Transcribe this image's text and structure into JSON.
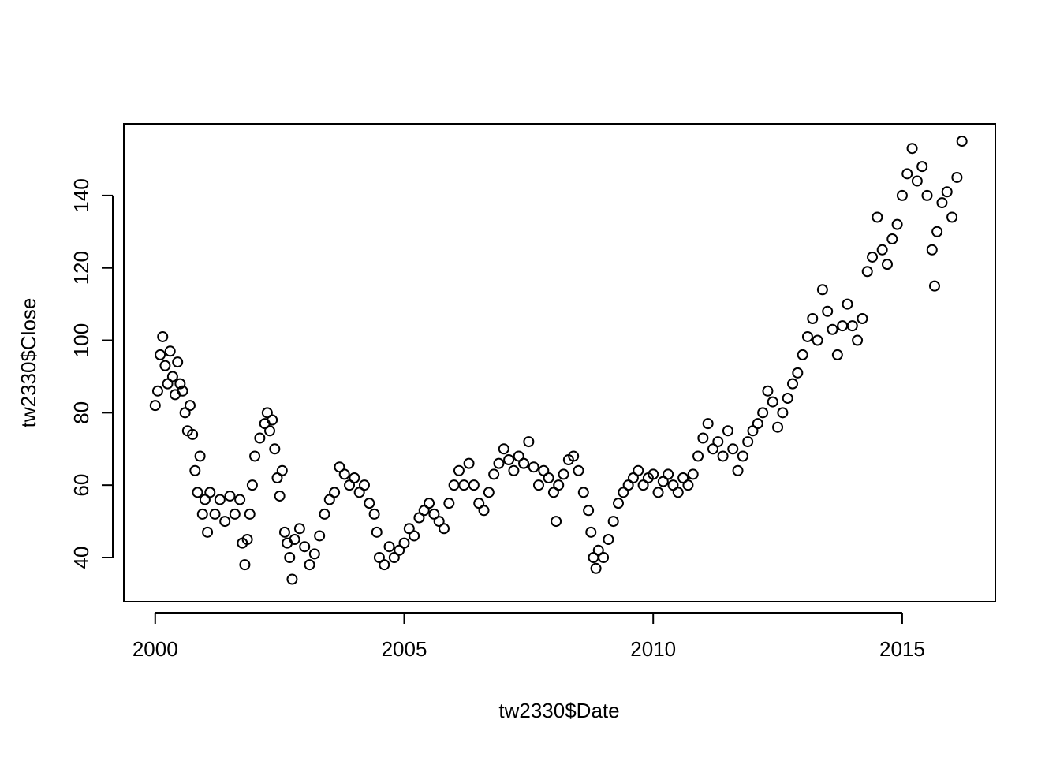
{
  "chart_data": {
    "type": "scatter",
    "xlabel": "tw2330$Date",
    "ylabel": "tw2330$Close",
    "xlim": [
      1999.37,
      2016.87
    ],
    "ylim": [
      27.8,
      159.8
    ],
    "xticks": [
      2000,
      2005,
      2010,
      2015
    ],
    "yticks": [
      40,
      60,
      80,
      100,
      120,
      140
    ],
    "color": "#000000",
    "x": [
      2000.0,
      2000.05,
      2000.1,
      2000.15,
      2000.2,
      2000.25,
      2000.3,
      2000.35,
      2000.4,
      2000.45,
      2000.5,
      2000.55,
      2000.6,
      2000.65,
      2000.7,
      2000.75,
      2000.8,
      2000.85,
      2000.9,
      2000.95,
      2001.0,
      2001.05,
      2001.1,
      2001.2,
      2001.3,
      2001.4,
      2001.5,
      2001.6,
      2001.7,
      2001.75,
      2001.8,
      2001.85,
      2001.9,
      2001.95,
      2002.0,
      2002.1,
      2002.2,
      2002.25,
      2002.3,
      2002.35,
      2002.4,
      2002.45,
      2002.5,
      2002.55,
      2002.6,
      2002.65,
      2002.7,
      2002.75,
      2002.8,
      2002.9,
      2003.0,
      2003.1,
      2003.2,
      2003.3,
      2003.4,
      2003.5,
      2003.6,
      2003.7,
      2003.8,
      2003.9,
      2004.0,
      2004.1,
      2004.2,
      2004.3,
      2004.4,
      2004.45,
      2004.5,
      2004.6,
      2004.7,
      2004.8,
      2004.9,
      2005.0,
      2005.1,
      2005.2,
      2005.3,
      2005.4,
      2005.5,
      2005.6,
      2005.7,
      2005.8,
      2005.9,
      2006.0,
      2006.1,
      2006.2,
      2006.3,
      2006.4,
      2006.5,
      2006.6,
      2006.7,
      2006.8,
      2006.9,
      2007.0,
      2007.1,
      2007.2,
      2007.3,
      2007.4,
      2007.5,
      2007.6,
      2007.7,
      2007.8,
      2007.9,
      2008.0,
      2008.05,
      2008.1,
      2008.2,
      2008.3,
      2008.4,
      2008.5,
      2008.6,
      2008.7,
      2008.75,
      2008.8,
      2008.85,
      2008.9,
      2009.0,
      2009.1,
      2009.2,
      2009.3,
      2009.4,
      2009.5,
      2009.6,
      2009.7,
      2009.8,
      2009.9,
      2010.0,
      2010.1,
      2010.2,
      2010.3,
      2010.4,
      2010.5,
      2010.6,
      2010.7,
      2010.8,
      2010.9,
      2011.0,
      2011.1,
      2011.2,
      2011.3,
      2011.4,
      2011.5,
      2011.6,
      2011.7,
      2011.8,
      2011.9,
      2012.0,
      2012.1,
      2012.2,
      2012.3,
      2012.4,
      2012.5,
      2012.6,
      2012.7,
      2012.8,
      2012.9,
      2013.0,
      2013.1,
      2013.2,
      2013.3,
      2013.4,
      2013.5,
      2013.6,
      2013.7,
      2013.8,
      2013.9,
      2014.0,
      2014.1,
      2014.2,
      2014.3,
      2014.4,
      2014.5,
      2014.6,
      2014.7,
      2014.8,
      2014.9,
      2015.0,
      2015.1,
      2015.2,
      2015.3,
      2015.4,
      2015.5,
      2015.6,
      2015.65,
      2015.7,
      2015.8,
      2015.9,
      2016.0,
      2016.1,
      2016.2
    ],
    "values": [
      82,
      86,
      96,
      101,
      93,
      88,
      97,
      90,
      85,
      94,
      88,
      86,
      80,
      75,
      82,
      74,
      64,
      58,
      68,
      52,
      56,
      47,
      58,
      52,
      56,
      50,
      57,
      52,
      56,
      44,
      38,
      45,
      52,
      60,
      68,
      73,
      77,
      80,
      75,
      78,
      70,
      62,
      57,
      64,
      47,
      44,
      40,
      34,
      45,
      48,
      43,
      38,
      41,
      46,
      52,
      56,
      58,
      65,
      63,
      60,
      62,
      58,
      60,
      55,
      52,
      47,
      40,
      38,
      43,
      40,
      42,
      44,
      48,
      46,
      51,
      53,
      55,
      52,
      50,
      48,
      55,
      60,
      64,
      60,
      66,
      60,
      55,
      53,
      58,
      63,
      66,
      70,
      67,
      64,
      68,
      66,
      72,
      65,
      60,
      64,
      62,
      58,
      50,
      60,
      63,
      67,
      68,
      64,
      58,
      53,
      47,
      40,
      37,
      42,
      40,
      45,
      50,
      55,
      58,
      60,
      62,
      64,
      60,
      62,
      63,
      58,
      61,
      63,
      60,
      58,
      62,
      60,
      63,
      68,
      73,
      77,
      70,
      72,
      68,
      75,
      70,
      64,
      68,
      72,
      75,
      77,
      80,
      86,
      83,
      76,
      80,
      84,
      88,
      91,
      96,
      101,
      106,
      100,
      114,
      108,
      103,
      96,
      104,
      110,
      104,
      100,
      106,
      119,
      123,
      134,
      125,
      121,
      128,
      132,
      140,
      146,
      153,
      144,
      148,
      140,
      125,
      115,
      130,
      138,
      141,
      134,
      145,
      155
    ]
  }
}
